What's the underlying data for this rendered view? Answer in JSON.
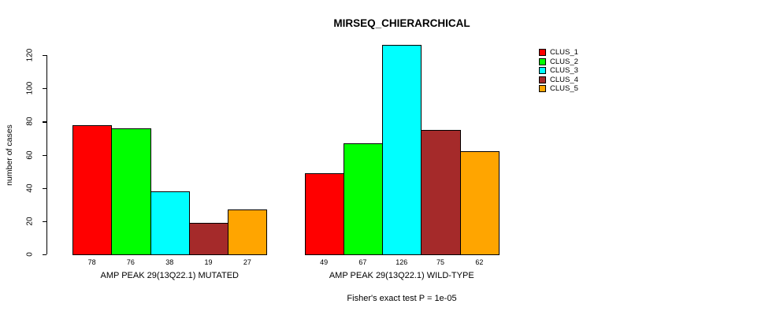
{
  "chart_data": {
    "type": "bar",
    "title": "MIRSEQ_CHIERARCHICAL",
    "ylabel": "number of cases",
    "xlabel": "",
    "ylim": [
      0,
      130
    ],
    "yticks": [
      0,
      20,
      40,
      60,
      80,
      100,
      120
    ],
    "grid": false,
    "background_color": "#ffffff",
    "axis_color": "#000000",
    "bar_border_color": "#000000",
    "annotation": "Fisher's exact test P = 1e-05",
    "categories": [
      "AMP PEAK 29(13Q22.1) MUTATED",
      "AMP PEAK 29(13Q22.1) WILD-TYPE"
    ],
    "groups": [
      {
        "label": "AMP PEAK 29(13Q22.1) MUTATED",
        "values": [
          78,
          76,
          38,
          19,
          27
        ]
      },
      {
        "label": "AMP PEAK 29(13Q22.1) WILD-TYPE",
        "values": [
          49,
          67,
          126,
          75,
          62
        ]
      }
    ],
    "series": [
      {
        "name": "CLUS_1",
        "color": "#ff0000",
        "values": [
          78,
          49
        ]
      },
      {
        "name": "CLUS_2",
        "color": "#00ff00",
        "values": [
          76,
          67
        ]
      },
      {
        "name": "CLUS_3",
        "color": "#00ffff",
        "values": [
          38,
          126
        ]
      },
      {
        "name": "CLUS_4",
        "color": "#a52a2a",
        "values": [
          19,
          75
        ]
      },
      {
        "name": "CLUS_5",
        "color": "#ffa500",
        "values": [
          27,
          62
        ]
      }
    ],
    "legend": {
      "position": "right-top",
      "entries": [
        {
          "label": "CLUS_1",
          "color": "#ff0000"
        },
        {
          "label": "CLUS_2",
          "color": "#00ff00"
        },
        {
          "label": "CLUS_3",
          "color": "#00ffff"
        },
        {
          "label": "CLUS_4",
          "color": "#a52a2a"
        },
        {
          "label": "CLUS_5",
          "color": "#ffa500"
        }
      ]
    },
    "bar_value_labels": [
      [
        78,
        76,
        38,
        19,
        27
      ],
      [
        49,
        67,
        126,
        75,
        62
      ]
    ]
  }
}
